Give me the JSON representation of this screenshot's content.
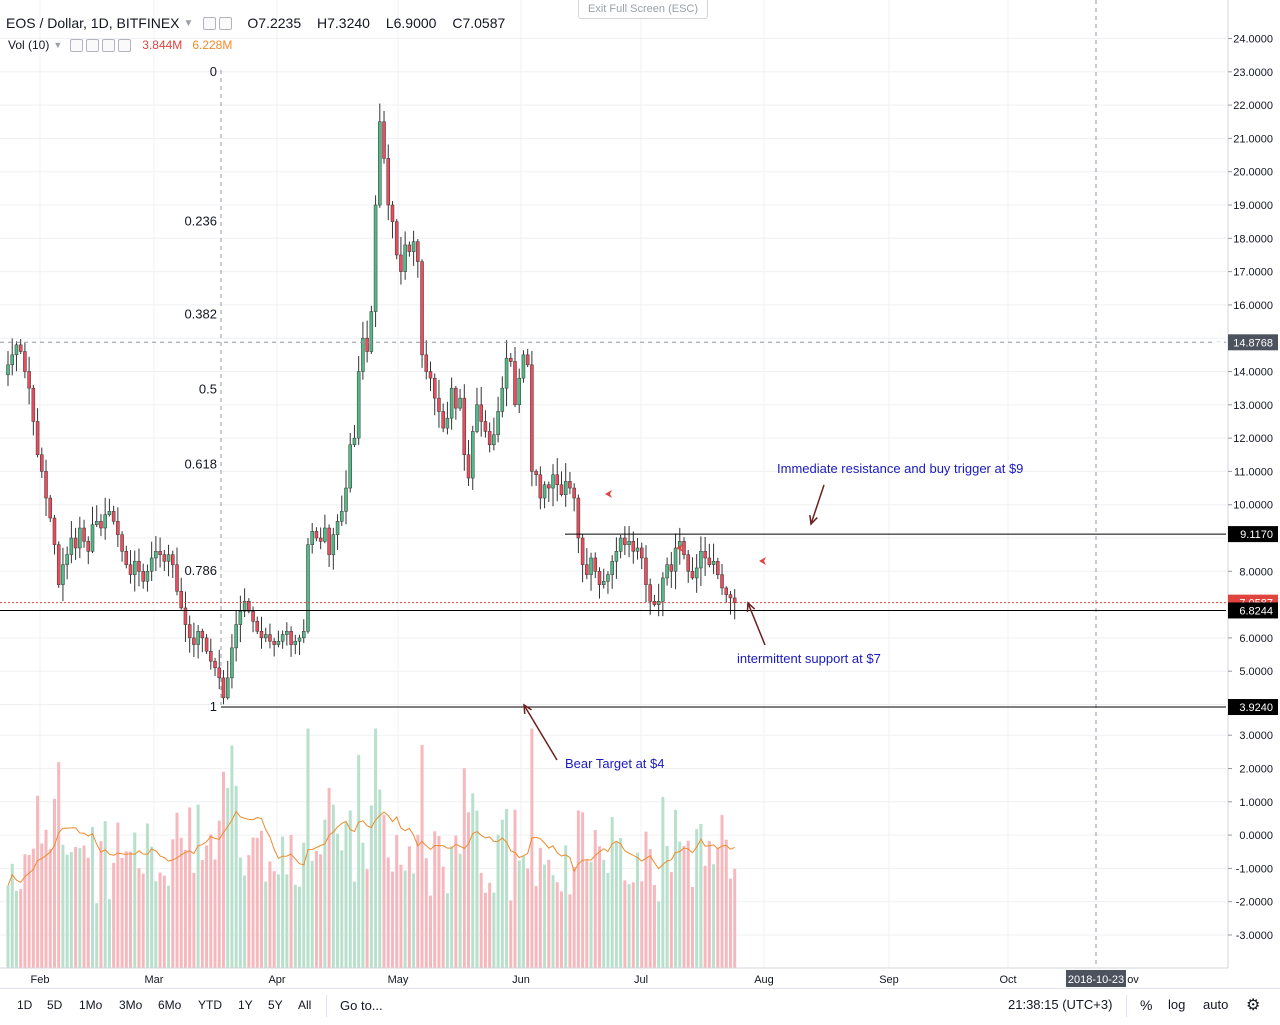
{
  "header": {
    "symbol": "EOS / Dollar, 1D, BITFINEX",
    "open": "O7.2235",
    "high": "H7.3240",
    "low": "L6.9000",
    "close": "C7.0587",
    "volume_label": "Vol (10)",
    "volume_value": "3.844M",
    "volume_ma": "6.228M",
    "exit_fullscreen": "Exit Full Screen (ESC)"
  },
  "bottom_bar": {
    "timeframes": [
      "1D",
      "5D",
      "1Mo",
      "3Mo",
      "6Mo",
      "YTD",
      "1Y",
      "5Y",
      "All"
    ],
    "goto": "Go to...",
    "time": "21:38:15 (UTC+3)",
    "percent": "%",
    "log": "log",
    "auto": "auto",
    "settings_icon": "gear-icon"
  },
  "colors": {
    "up": "#53b987",
    "down": "#eb4d5c",
    "up_volume": "#b8e0cc",
    "down_volume": "#f6b8bd",
    "volume_ma": "#ef8a2c",
    "annotation": "#1a1abf",
    "arrow": "#6b2020",
    "grid": "#eef0f3",
    "price_line": "#e0443f"
  },
  "chart_data": {
    "type": "candlestick",
    "symbol": "EOS / Dollar, 1D, BITFINEX",
    "x_tick_labels": [
      "Feb",
      "Mar",
      "Apr",
      "May",
      "Jun",
      "Jul",
      "Aug",
      "Sep",
      "Oct",
      "2018-10-23",
      "ov"
    ],
    "y_tick_labels": [
      "24.0000",
      "23.0000",
      "22.0000",
      "21.0000",
      "20.0000",
      "19.0000",
      "18.0000",
      "17.0000",
      "16.0000",
      "15.0000",
      "14.0000",
      "13.0000",
      "12.0000",
      "11.0000",
      "10.0000",
      "9.0000",
      "8.0000",
      "6.0000",
      "5.0000",
      "4.0000",
      "3.0000",
      "2.0000",
      "1.0000",
      "0.0000",
      "-1.0000",
      "-2.0000",
      "-3.0000"
    ],
    "price_range": [
      4.0,
      24.0
    ],
    "close_series": [
      14.2,
      14.5,
      14.8,
      14.6,
      14.0,
      13.5,
      12.5,
      11.5,
      11.0,
      10.2,
      9.6,
      8.8,
      7.6,
      8.2,
      8.5,
      9.0,
      8.7,
      9.3,
      8.9,
      8.6,
      9.4,
      9.5,
      9.3,
      9.7,
      9.8,
      9.5,
      9.1,
      8.6,
      8.2,
      7.9,
      8.3,
      8.0,
      7.7,
      8.0,
      8.4,
      8.6,
      8.5,
      8.3,
      8.5,
      8.2,
      7.4,
      6.9,
      6.4,
      6.0,
      5.8,
      6.2,
      6.0,
      5.6,
      5.3,
      5.1,
      4.8,
      4.2,
      4.8,
      5.7,
      6.4,
      6.8,
      7.1,
      6.8,
      6.5,
      6.2,
      6.0,
      6.1,
      5.9,
      5.8,
      5.9,
      6.1,
      6.2,
      5.8,
      5.9,
      6.0,
      6.2,
      8.8,
      9.2,
      9.0,
      8.9,
      9.3,
      8.5,
      9.1,
      9.5,
      9.8,
      10.5,
      11.8,
      12.0,
      14.0,
      15.0,
      14.6,
      15.8,
      19.0,
      21.5,
      20.4,
      19.0,
      18.5,
      17.5,
      17.0,
      17.8,
      17.6,
      17.9,
      17.3,
      14.5,
      14.0,
      13.8,
      13.2,
      12.8,
      12.3,
      12.6,
      13.5,
      12.9,
      13.2,
      11.5,
      10.8,
      12.2,
      13.0,
      12.5,
      12.2,
      11.8,
      12.1,
      12.8,
      13.5,
      14.4,
      14.3,
      13.0,
      13.8,
      14.5,
      14.2,
      11.0,
      10.9,
      10.2,
      10.6,
      10.5,
      10.9,
      10.6,
      10.3,
      10.7,
      10.5,
      10.2,
      9.0,
      8.2,
      7.9,
      8.4,
      8.0,
      7.6,
      7.7,
      7.9,
      8.3,
      8.6,
      9.0,
      8.8,
      8.9,
      8.6,
      8.7,
      8.4,
      7.6,
      7.1,
      7.0,
      7.1,
      7.8,
      8.2,
      8.0,
      8.7,
      8.9,
      8.5,
      8.0,
      7.8,
      8.1,
      8.6,
      8.4,
      8.2,
      8.3,
      7.9,
      7.5,
      7.3,
      7.2,
      7.0587
    ],
    "levels": [
      {
        "value": 14.8768,
        "label": "14.8768",
        "style": "crosshair"
      },
      {
        "value": 9.117,
        "label": "9.1170",
        "style": "resistance"
      },
      {
        "value": 6.8244,
        "label": "6.8244",
        "style": "support"
      },
      {
        "value": 3.924,
        "label": "3.9240",
        "style": "target"
      },
      {
        "value": 7.0587,
        "label": "7.0587",
        "style": "last-price"
      }
    ],
    "fibonacci": {
      "from": 23.0,
      "to": 3.924,
      "levels": [
        {
          "ratio": 0,
          "label": "0"
        },
        {
          "ratio": 0.236,
          "label": "0.236"
        },
        {
          "ratio": 0.382,
          "label": "0.382"
        },
        {
          "ratio": 0.5,
          "label": "0.5"
        },
        {
          "ratio": 0.618,
          "label": "0.618"
        },
        {
          "ratio": 0.786,
          "label": "0.786"
        },
        {
          "ratio": 1,
          "label": "1"
        }
      ]
    },
    "annotations": [
      {
        "text": "Immediate resistance and buy trigger at $9"
      },
      {
        "text": "intermittent support at $7"
      },
      {
        "text": "Bear Target at $4"
      }
    ],
    "volume": {
      "label": "Vol (10)",
      "current": "3.844M",
      "ma": "6.228M"
    },
    "grid": true,
    "legend": "none"
  }
}
